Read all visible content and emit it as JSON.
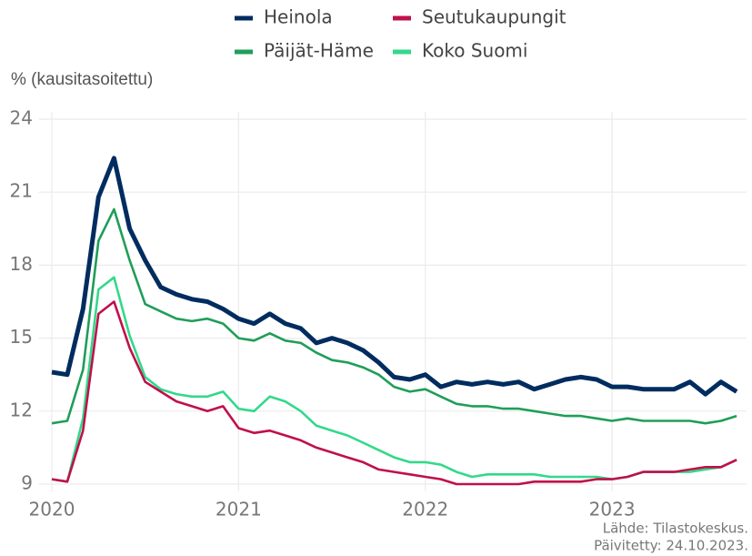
{
  "chart_data": {
    "type": "line",
    "y_label": "% (kausitasoitettu)",
    "notes": [
      "Lähde: Tilastokeskus.",
      "Päivitetty: 24.10.2023."
    ],
    "x": [
      2020.0,
      2020.083,
      2020.167,
      2020.25,
      2020.333,
      2020.417,
      2020.5,
      2020.583,
      2020.667,
      2020.75,
      2020.833,
      2020.917,
      2021.0,
      2021.083,
      2021.167,
      2021.25,
      2021.333,
      2021.417,
      2021.5,
      2021.583,
      2021.667,
      2021.75,
      2021.833,
      2021.917,
      2022.0,
      2022.083,
      2022.167,
      2022.25,
      2022.333,
      2022.417,
      2022.5,
      2022.583,
      2022.667,
      2022.75,
      2022.833,
      2022.917,
      2023.0,
      2023.083,
      2023.167,
      2023.25,
      2023.333,
      2023.417,
      2023.5,
      2023.583,
      2023.667
    ],
    "xlim": [
      2019.93,
      2023.72
    ],
    "xticks": [
      2020,
      2021,
      2022,
      2023
    ],
    "ylim": [
      8.7,
      24.3
    ],
    "yticks": [
      9,
      12,
      15,
      18,
      21,
      24
    ],
    "grid": true,
    "series": [
      {
        "name": "Heinola",
        "color": "#002c5f",
        "values": [
          13.6,
          13.5,
          16.2,
          20.8,
          22.4,
          19.5,
          18.2,
          17.1,
          16.8,
          16.6,
          16.5,
          16.2,
          15.8,
          15.6,
          16.0,
          15.6,
          15.4,
          14.8,
          15.0,
          14.8,
          14.5,
          14.0,
          13.4,
          13.3,
          13.5,
          13.0,
          13.2,
          13.1,
          13.2,
          13.1,
          13.2,
          12.9,
          13.1,
          13.3,
          13.4,
          13.3,
          13.0,
          13.0,
          12.9,
          12.9,
          12.9,
          13.2,
          12.7,
          13.2,
          12.8
        ]
      },
      {
        "name": "Seutukaupungit",
        "color": "#c0104a",
        "values": [
          9.2,
          9.1,
          11.2,
          16.0,
          16.5,
          14.6,
          13.2,
          12.8,
          12.4,
          12.2,
          12.0,
          12.2,
          11.3,
          11.1,
          11.2,
          11.0,
          10.8,
          10.5,
          10.3,
          10.1,
          9.9,
          9.6,
          9.5,
          9.4,
          9.3,
          9.2,
          9.0,
          9.0,
          9.0,
          9.0,
          9.0,
          9.1,
          9.1,
          9.1,
          9.1,
          9.2,
          9.2,
          9.3,
          9.5,
          9.5,
          9.5,
          9.6,
          9.7,
          9.7,
          10.0
        ]
      },
      {
        "name": "Päijät-Häme",
        "color": "#1f9e59",
        "values": [
          11.5,
          11.6,
          13.7,
          19.0,
          20.3,
          18.2,
          16.4,
          16.1,
          15.8,
          15.7,
          15.8,
          15.6,
          15.0,
          14.9,
          15.2,
          14.9,
          14.8,
          14.4,
          14.1,
          14.0,
          13.8,
          13.5,
          13.0,
          12.8,
          12.9,
          12.6,
          12.3,
          12.2,
          12.2,
          12.1,
          12.1,
          12.0,
          11.9,
          11.8,
          11.8,
          11.7,
          11.6,
          11.7,
          11.6,
          11.6,
          11.6,
          11.6,
          11.5,
          11.6,
          11.8
        ]
      },
      {
        "name": "Koko Suomi",
        "color": "#32d98a",
        "values": [
          9.2,
          9.1,
          11.7,
          17.0,
          17.5,
          15.1,
          13.4,
          12.9,
          12.7,
          12.6,
          12.6,
          12.8,
          12.1,
          12.0,
          12.6,
          12.4,
          12.0,
          11.4,
          11.2,
          11.0,
          10.7,
          10.4,
          10.1,
          9.9,
          9.9,
          9.8,
          9.5,
          9.3,
          9.4,
          9.4,
          9.4,
          9.4,
          9.3,
          9.3,
          9.3,
          9.3,
          9.2,
          9.3,
          9.5,
          9.5,
          9.5,
          9.5,
          9.6,
          9.7,
          10.0
        ]
      }
    ]
  }
}
